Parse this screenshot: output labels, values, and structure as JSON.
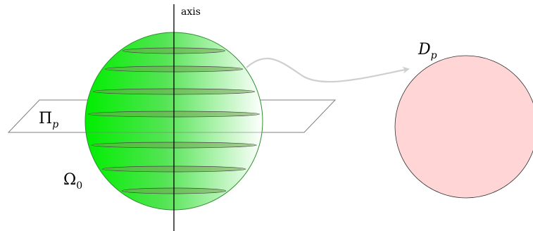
{
  "labels": {
    "axis": "axis",
    "plane_main": "Π",
    "plane_sub": "p",
    "body_main": "Ω",
    "body_sub": "0",
    "disk_main": "D",
    "disk_sub": "p"
  },
  "colors": {
    "sphere_dark": "#00ee00",
    "sphere_light": "#ffffff",
    "sphere_outline": "#2f8f2f",
    "slice_fill": "#6fa64f",
    "slice_stroke": "#444444",
    "plane_stroke": "#7f7f7f",
    "axis_line": "#000000",
    "arrow": "#cfcfcf",
    "disk_fill": "#ffd5d5",
    "disk_stroke": "#333333"
  },
  "slice_count": 7
}
